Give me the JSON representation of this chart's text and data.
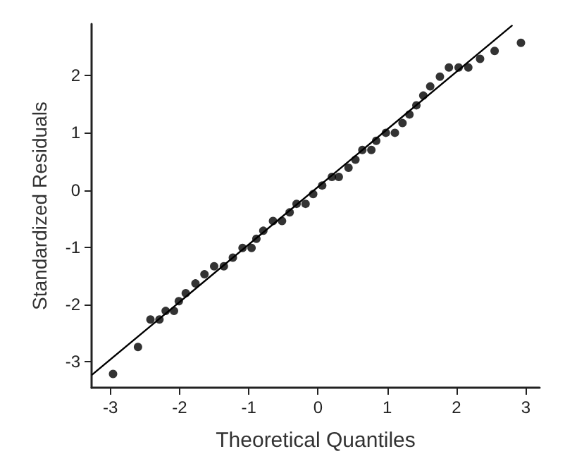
{
  "chart_data": {
    "type": "scatter",
    "xlabel": "Theoretical Quantiles",
    "ylabel": "Standardized Residuals",
    "xlim": [
      -3.27,
      3.2
    ],
    "ylim": [
      -3.45,
      2.9
    ],
    "xticks": [
      -3,
      -2,
      -1,
      0,
      1,
      2,
      3
    ],
    "yticks": [
      -3,
      -2,
      -1,
      0,
      1,
      2
    ],
    "grid": false,
    "marker": "circle",
    "series": [
      {
        "color": "#000000",
        "x": [
          -2.96,
          -2.6,
          -2.42,
          -2.29,
          -2.2,
          -2.08,
          -2.01,
          -1.91,
          -1.77,
          -1.64,
          -1.5,
          -1.36,
          -1.23,
          -1.09,
          -0.96,
          -0.89,
          -0.79,
          -0.65,
          -0.52,
          -0.41,
          -0.31,
          -0.18,
          -0.07,
          0.06,
          0.2,
          0.3,
          0.44,
          0.54,
          0.64,
          0.77,
          0.84,
          0.98,
          1.11,
          1.22,
          1.32,
          1.42,
          1.52,
          1.62,
          1.76,
          1.89,
          2.03,
          2.17,
          2.34,
          2.55,
          2.93
        ],
        "values": [
          -3.21,
          -2.74,
          -2.26,
          -2.26,
          -2.11,
          -2.11,
          -1.94,
          -1.8,
          -1.63,
          -1.47,
          -1.33,
          -1.33,
          -1.18,
          -1.01,
          -1.01,
          -0.85,
          -0.71,
          -0.54,
          -0.54,
          -0.39,
          -0.24,
          -0.24,
          -0.07,
          0.08,
          0.23,
          0.23,
          0.39,
          0.53,
          0.7,
          0.7,
          0.86,
          1.0,
          1.0,
          1.17,
          1.32,
          1.48,
          1.65,
          1.81,
          1.98,
          2.14,
          2.14,
          2.14,
          2.29,
          2.43,
          2.57
        ]
      },
      {
        "type": "line",
        "color": "#000000",
        "marker": "none",
        "line_style": "solid",
        "x": [
          -3.26,
          2.8
        ],
        "values": [
          -3.22,
          2.87
        ]
      }
    ]
  }
}
